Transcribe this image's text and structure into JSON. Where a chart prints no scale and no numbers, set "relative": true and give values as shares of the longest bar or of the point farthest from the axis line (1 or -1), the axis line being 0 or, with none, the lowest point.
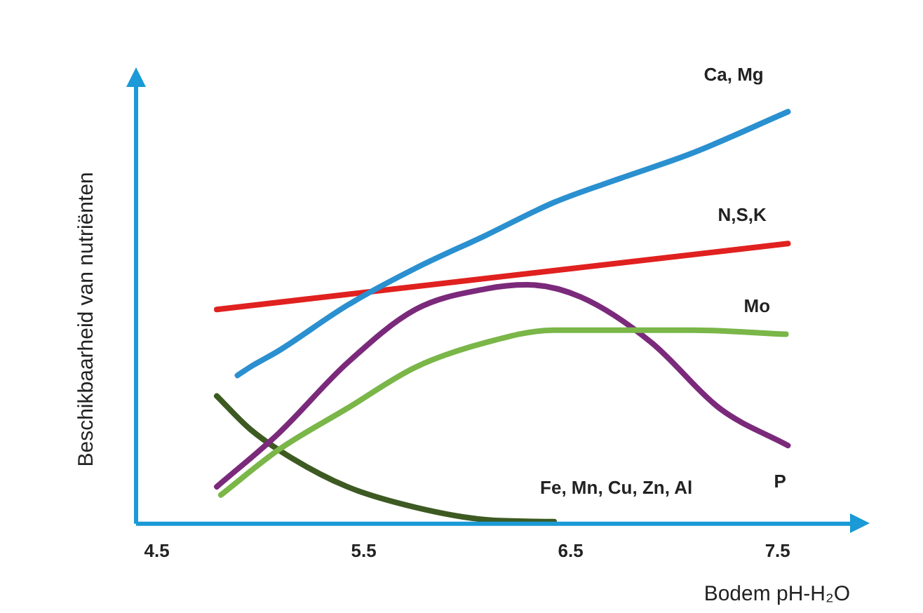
{
  "chart_data": {
    "type": "line",
    "relative": true,
    "xlabel": "Bodem pH-H₂O",
    "ylabel": "Beschikbaarheid van nutriënten",
    "xlim": [
      4.4,
      7.85
    ],
    "xticks": [
      4.5,
      5.5,
      6.5,
      7.5
    ],
    "grid": false,
    "legend": false,
    "marker": "none",
    "line_style": "solid",
    "series": [
      {
        "name": "Ca, Mg",
        "color": "#2a90d0",
        "x": [
          4.89,
          4.95,
          5.09,
          5.42,
          5.75,
          6.09,
          6.42,
          6.75,
          7.09,
          7.55
        ],
        "values": [
          0.36,
          0.38,
          0.42,
          0.53,
          0.62,
          0.7,
          0.78,
          0.84,
          0.9,
          1
        ]
      },
      {
        "name": "N,S,K",
        "color": "#e0211f",
        "x": [
          4.79,
          7.55
        ],
        "values": [
          0.52,
          0.68
        ]
      },
      {
        "name": "Mo",
        "color": "#7ab648",
        "x": [
          4.81,
          5.09,
          5.42,
          5.75,
          6.09,
          6.42,
          6.75,
          7.09,
          7.54
        ],
        "values": [
          0.07,
          0.18,
          0.28,
          0.38,
          0.44,
          0.47,
          0.47,
          0.47,
          0.46
        ]
      },
      {
        "name": "P",
        "color": "#7b2a7b",
        "x": [
          4.79,
          5.09,
          5.42,
          5.75,
          6.09,
          6.29,
          6.55,
          6.89,
          7.22,
          7.55
        ],
        "values": [
          0.09,
          0.22,
          0.39,
          0.52,
          0.57,
          0.58,
          0.55,
          0.44,
          0.28,
          0.19
        ]
      },
      {
        "name": "Fe, Mn, Cu, Zn, Al",
        "color": "#3d5a22",
        "x": [
          4.79,
          4.95,
          5.15,
          5.42,
          5.75,
          6.09,
          6.42
        ],
        "values": [
          0.31,
          0.23,
          0.16,
          0.09,
          0.04,
          0.01,
          0.005
        ]
      }
    ]
  }
}
